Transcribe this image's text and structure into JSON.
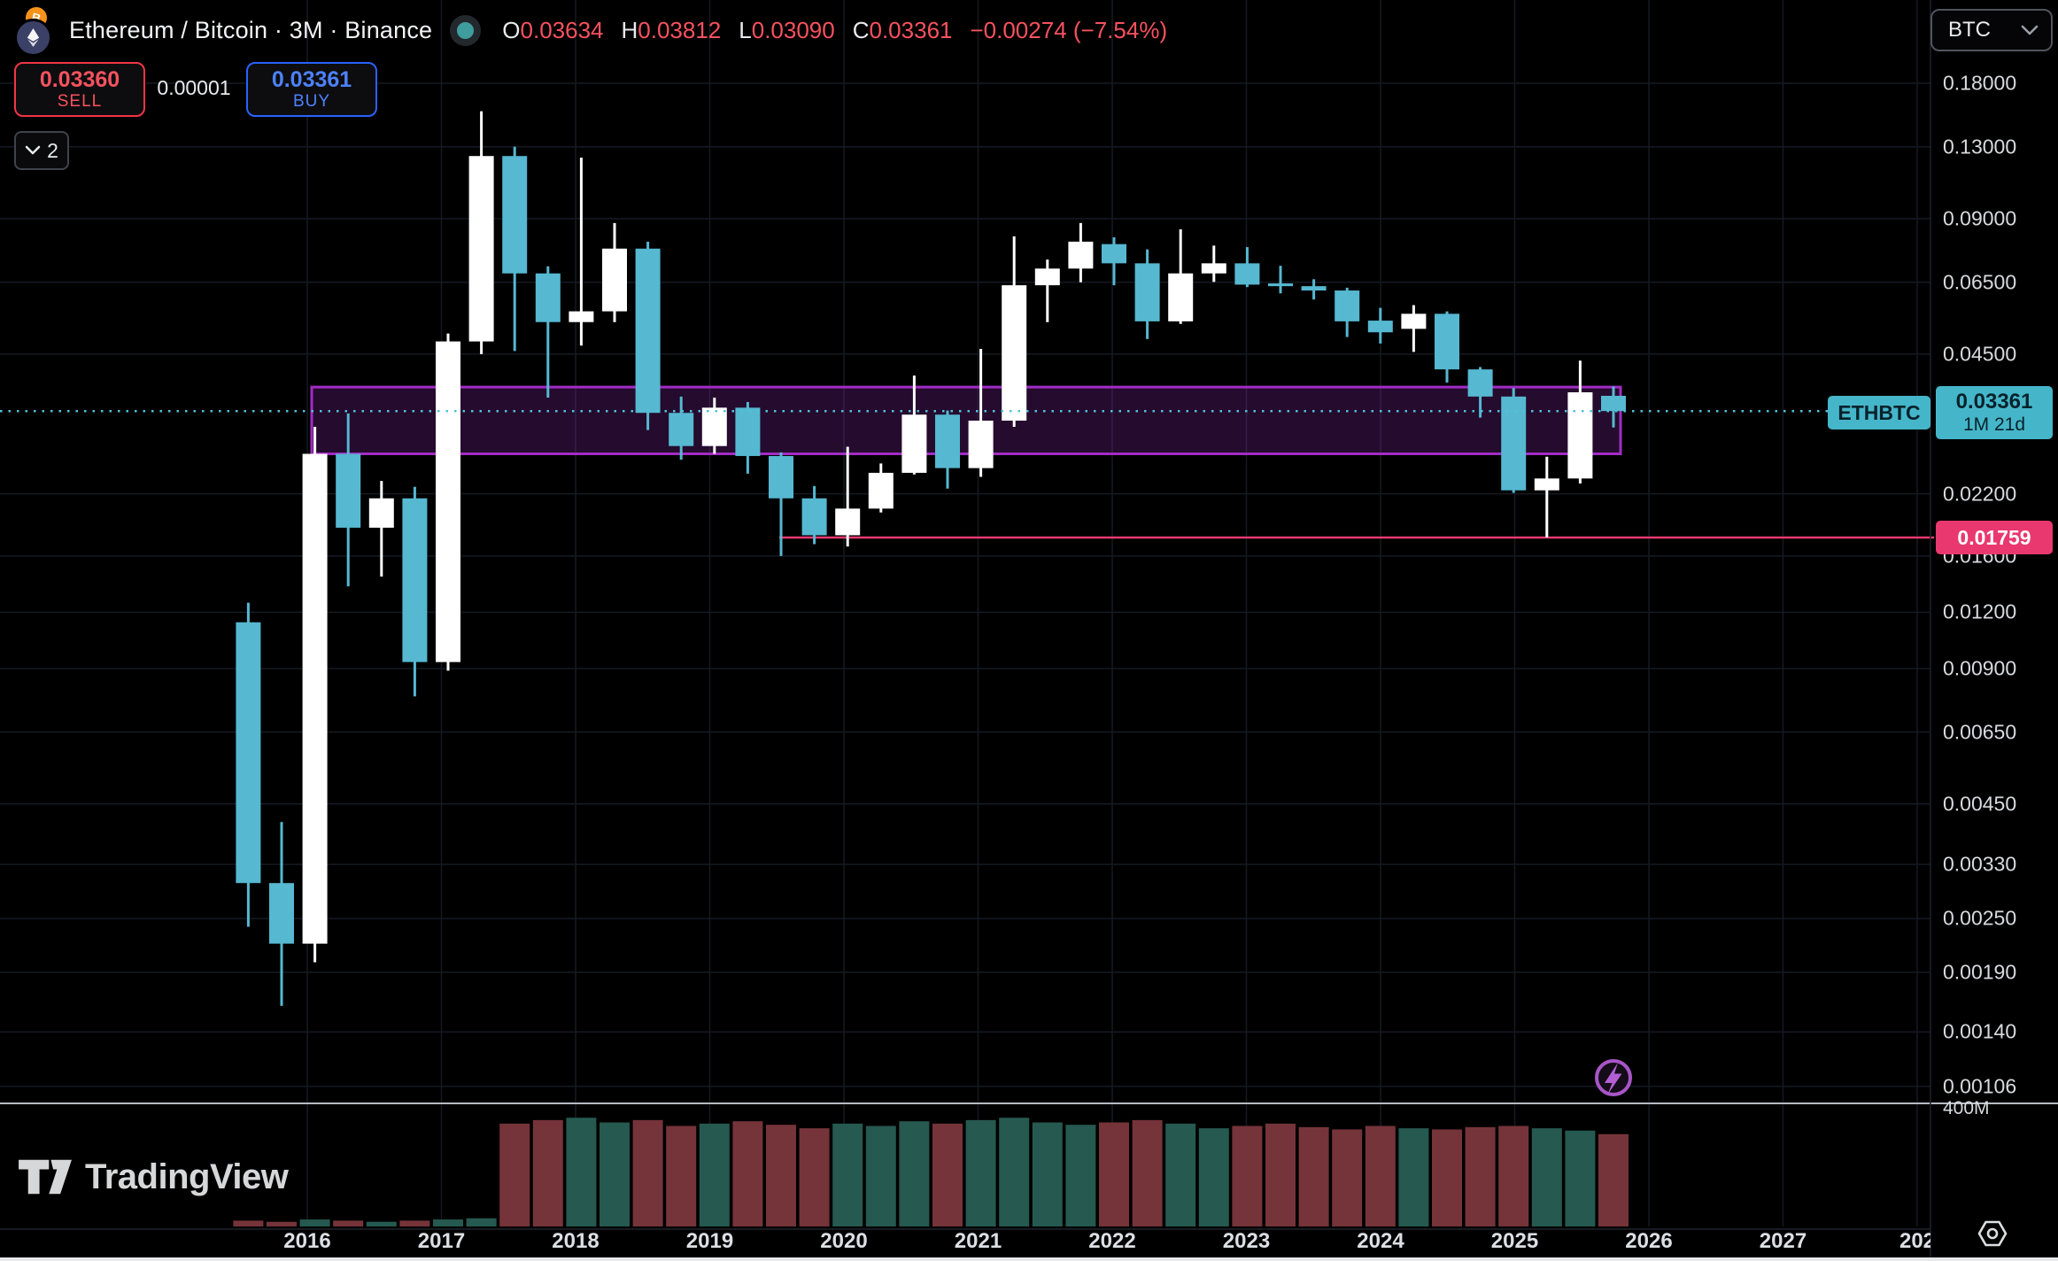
{
  "header": {
    "title": "Ethereum / Bitcoin · 3M · Binance",
    "ohlc": [
      {
        "k": "O",
        "v": "0.03634"
      },
      {
        "k": "H",
        "v": "0.03812"
      },
      {
        "k": "L",
        "v": "0.03090"
      },
      {
        "k": "C",
        "v": "0.03361"
      }
    ],
    "change": "−0.00274 (−7.54%)"
  },
  "trade_panel": {
    "sell_price": "0.03360",
    "sell_label": "SELL",
    "spread": "0.00001",
    "buy_price": "0.03361",
    "buy_label": "BUY",
    "interval_badge": "2"
  },
  "price_scale": {
    "currency_button": "BTC",
    "volume_tick": "400M",
    "ticks": [
      {
        "label": "0.18000",
        "value": 0.18
      },
      {
        "label": "0.13000",
        "value": 0.13
      },
      {
        "label": "0.09000",
        "value": 0.09
      },
      {
        "label": "0.06500",
        "value": 0.065
      },
      {
        "label": "0.04500",
        "value": 0.045
      },
      {
        "label": "0.02200",
        "value": 0.022
      },
      {
        "label": "0.01600",
        "value": 0.016
      },
      {
        "label": "0.01200",
        "value": 0.012
      },
      {
        "label": "0.00900",
        "value": 0.009
      },
      {
        "label": "0.00650",
        "value": 0.0065
      },
      {
        "label": "0.00450",
        "value": 0.0045
      },
      {
        "label": "0.00330",
        "value": 0.0033
      },
      {
        "label": "0.00250",
        "value": 0.0025
      },
      {
        "label": "0.00190",
        "value": 0.0019
      },
      {
        "label": "0.00140",
        "value": 0.0014
      },
      {
        "label": "0.00106",
        "value": 0.00106
      }
    ]
  },
  "time_scale": {
    "years": [
      "2016",
      "2017",
      "2018",
      "2019",
      "2020",
      "2021",
      "2022",
      "2023",
      "2024",
      "2025",
      "2026",
      "2027",
      "202"
    ]
  },
  "price_marker": {
    "symbol": "ETHBTC",
    "price": "0.03361",
    "countdown": "1M 21d"
  },
  "alert_line_label": "0.01759",
  "branding": {
    "logo_text": "TradingView"
  },
  "colors": {
    "candle_up": "#ffffff",
    "candle_down": "#56b8d1",
    "volume_up": "#26594f",
    "volume_down": "#75343a",
    "current_price_line": "#4fc3d9",
    "marker_bg": "#45b6c9",
    "alert_pink": "#e9386f",
    "zone_border": "#a22cc4",
    "zone_fill": "rgba(142,44,178,0.26)",
    "sell_red": "#f23645",
    "buy_blue": "#2962ff",
    "value_red": "#f7525f",
    "bolt_purple": "#b35fd4"
  },
  "chart_data": {
    "type": "candlestick",
    "symbol": "ETHBTC",
    "interval": "3M",
    "exchange": "Binance",
    "log_scale": true,
    "y_axis_range": [
      0.00095,
      0.2
    ],
    "current_price": 0.03361,
    "alert_line": {
      "value": 0.01759,
      "starts_at": "2019 Q3"
    },
    "zone_box": {
      "top": 0.038,
      "bottom": 0.027,
      "start": "2016 Q1",
      "end": "2025 Q4"
    },
    "volume_scale_top_m": 400,
    "candles": [
      {
        "t": "2015 Q3",
        "o": 0.0114,
        "h": 0.0126,
        "l": 0.0024,
        "c": 0.003,
        "v": 20
      },
      {
        "t": "2015 Q4",
        "o": 0.003,
        "h": 0.0041,
        "l": 0.0016,
        "c": 0.0022,
        "v": 16
      },
      {
        "t": "2016 Q1",
        "o": 0.0022,
        "h": 0.031,
        "l": 0.002,
        "c": 0.027,
        "v": 24
      },
      {
        "t": "2016 Q2",
        "o": 0.027,
        "h": 0.0332,
        "l": 0.0137,
        "c": 0.0185,
        "v": 20
      },
      {
        "t": "2016 Q3",
        "o": 0.0185,
        "h": 0.0235,
        "l": 0.0144,
        "c": 0.0215,
        "v": 16
      },
      {
        "t": "2016 Q4",
        "o": 0.0215,
        "h": 0.0228,
        "l": 0.0078,
        "c": 0.0093,
        "v": 20
      },
      {
        "t": "2017 Q1",
        "o": 0.0093,
        "h": 0.05,
        "l": 0.0089,
        "c": 0.048,
        "v": 24
      },
      {
        "t": "2017 Q2",
        "o": 0.048,
        "h": 0.156,
        "l": 0.045,
        "c": 0.124,
        "v": 28
      },
      {
        "t": "2017 Q3",
        "o": 0.124,
        "h": 0.13,
        "l": 0.0457,
        "c": 0.068,
        "v": 352
      },
      {
        "t": "2017 Q4",
        "o": 0.068,
        "h": 0.0705,
        "l": 0.036,
        "c": 0.053,
        "v": 364
      },
      {
        "t": "2018 Q1",
        "o": 0.053,
        "h": 0.123,
        "l": 0.047,
        "c": 0.056,
        "v": 372
      },
      {
        "t": "2018 Q2",
        "o": 0.056,
        "h": 0.088,
        "l": 0.053,
        "c": 0.0772,
        "v": 356
      },
      {
        "t": "2018 Q3",
        "o": 0.0772,
        "h": 0.08,
        "l": 0.0305,
        "c": 0.0333,
        "v": 364
      },
      {
        "t": "2018 Q4",
        "o": 0.0333,
        "h": 0.0362,
        "l": 0.0262,
        "c": 0.0281,
        "v": 344
      },
      {
        "t": "2019 Q1",
        "o": 0.0281,
        "h": 0.036,
        "l": 0.027,
        "c": 0.0342,
        "v": 352
      },
      {
        "t": "2019 Q2",
        "o": 0.0342,
        "h": 0.0352,
        "l": 0.0244,
        "c": 0.0267,
        "v": 360
      },
      {
        "t": "2019 Q3",
        "o": 0.0267,
        "h": 0.0272,
        "l": 0.016,
        "c": 0.0215,
        "v": 348
      },
      {
        "t": "2019 Q4",
        "o": 0.0215,
        "h": 0.0229,
        "l": 0.017,
        "c": 0.0178,
        "v": 336
      },
      {
        "t": "2020 Q1",
        "o": 0.0178,
        "h": 0.028,
        "l": 0.0168,
        "c": 0.0204,
        "v": 352
      },
      {
        "t": "2020 Q2",
        "o": 0.0204,
        "h": 0.0257,
        "l": 0.02,
        "c": 0.0245,
        "v": 344
      },
      {
        "t": "2020 Q3",
        "o": 0.0245,
        "h": 0.0403,
        "l": 0.0243,
        "c": 0.033,
        "v": 360
      },
      {
        "t": "2020 Q4",
        "o": 0.033,
        "h": 0.0337,
        "l": 0.0226,
        "c": 0.0251,
        "v": 352
      },
      {
        "t": "2021 Q1",
        "o": 0.0251,
        "h": 0.0462,
        "l": 0.024,
        "c": 0.032,
        "v": 364
      },
      {
        "t": "2021 Q2",
        "o": 0.032,
        "h": 0.0822,
        "l": 0.031,
        "c": 0.064,
        "v": 372
      },
      {
        "t": "2021 Q3",
        "o": 0.064,
        "h": 0.073,
        "l": 0.053,
        "c": 0.0697,
        "v": 356
      },
      {
        "t": "2021 Q4",
        "o": 0.0697,
        "h": 0.088,
        "l": 0.065,
        "c": 0.08,
        "v": 348
      },
      {
        "t": "2022 Q1",
        "o": 0.079,
        "h": 0.0818,
        "l": 0.064,
        "c": 0.0716,
        "v": 356
      },
      {
        "t": "2022 Q2",
        "o": 0.0716,
        "h": 0.0769,
        "l": 0.0486,
        "c": 0.0532,
        "v": 364
      },
      {
        "t": "2022 Q3",
        "o": 0.0532,
        "h": 0.0852,
        "l": 0.0525,
        "c": 0.068,
        "v": 352
      },
      {
        "t": "2022 Q4",
        "o": 0.068,
        "h": 0.0784,
        "l": 0.0651,
        "c": 0.0716,
        "v": 336
      },
      {
        "t": "2023 Q1",
        "o": 0.0716,
        "h": 0.0778,
        "l": 0.0634,
        "c": 0.0642,
        "v": 344
      },
      {
        "t": "2023 Q2",
        "o": 0.0646,
        "h": 0.0707,
        "l": 0.0614,
        "c": 0.0637,
        "v": 352
      },
      {
        "t": "2023 Q3",
        "o": 0.0637,
        "h": 0.066,
        "l": 0.0595,
        "c": 0.0623,
        "v": 340
      },
      {
        "t": "2023 Q4",
        "o": 0.0623,
        "h": 0.0632,
        "l": 0.0491,
        "c": 0.0532,
        "v": 332
      },
      {
        "t": "2024 Q1",
        "o": 0.0534,
        "h": 0.057,
        "l": 0.0475,
        "c": 0.0503,
        "v": 344
      },
      {
        "t": "2024 Q2",
        "o": 0.0512,
        "h": 0.0578,
        "l": 0.0455,
        "c": 0.0553,
        "v": 336
      },
      {
        "t": "2024 Q3",
        "o": 0.0553,
        "h": 0.056,
        "l": 0.0389,
        "c": 0.0416,
        "v": 332
      },
      {
        "t": "2024 Q4",
        "o": 0.0416,
        "h": 0.0421,
        "l": 0.0325,
        "c": 0.0362,
        "v": 340
      },
      {
        "t": "2025 Q1",
        "o": 0.0362,
        "h": 0.0378,
        "l": 0.0221,
        "c": 0.0224,
        "v": 344
      },
      {
        "t": "2025 Q2",
        "o": 0.0224,
        "h": 0.0266,
        "l": 0.0176,
        "c": 0.0238,
        "v": 336
      },
      {
        "t": "2025 Q3",
        "o": 0.0238,
        "h": 0.0435,
        "l": 0.0232,
        "c": 0.037,
        "v": 328
      },
      {
        "t": "2025 Q4",
        "o": 0.03634,
        "h": 0.03812,
        "l": 0.0309,
        "c": 0.03361,
        "v": 316
      }
    ]
  }
}
